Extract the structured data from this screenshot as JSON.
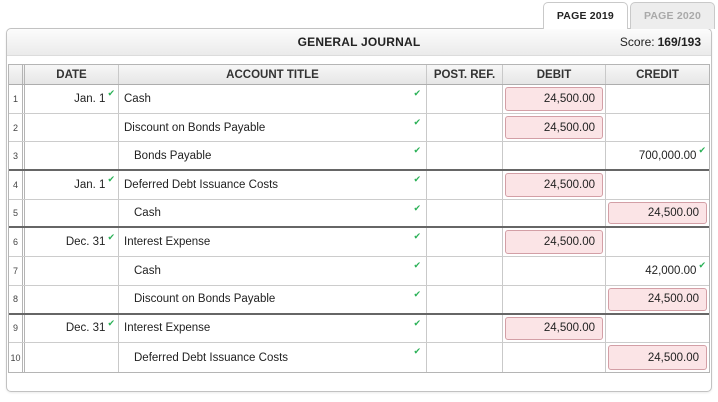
{
  "tabs": [
    {
      "label": "PAGE 2019",
      "active": true
    },
    {
      "label": "PAGE 2020",
      "active": false
    }
  ],
  "header": {
    "title": "GENERAL JOURNAL",
    "score_label": "Score:",
    "score_value": "169/193"
  },
  "table": {
    "columns": [
      "DATE",
      "ACCOUNT TITLE",
      "POST. REF.",
      "DEBIT",
      "CREDIT"
    ],
    "rows": [
      {
        "num": "1",
        "date": "Jan. 1",
        "date_check": true,
        "account": "Cash",
        "indent": false,
        "account_check": true,
        "post_ref": "",
        "debit": {
          "value": "24,500.00",
          "style": "flagged"
        },
        "credit": null,
        "entry_end": false
      },
      {
        "num": "2",
        "date": "",
        "date_check": false,
        "account": "Discount on Bonds Payable",
        "indent": false,
        "account_check": true,
        "post_ref": "",
        "debit": {
          "value": "24,500.00",
          "style": "flagged"
        },
        "credit": null,
        "entry_end": false
      },
      {
        "num": "3",
        "date": "",
        "date_check": false,
        "account": "Bonds Payable",
        "indent": true,
        "account_check": true,
        "post_ref": "",
        "debit": null,
        "credit": {
          "value": "700,000.00",
          "style": "correct"
        },
        "entry_end": true
      },
      {
        "num": "4",
        "date": "Jan. 1",
        "date_check": true,
        "account": "Deferred Debt Issuance Costs",
        "indent": false,
        "account_check": true,
        "post_ref": "",
        "debit": {
          "value": "24,500.00",
          "style": "flagged"
        },
        "credit": null,
        "entry_end": false
      },
      {
        "num": "5",
        "date": "",
        "date_check": false,
        "account": "Cash",
        "indent": true,
        "account_check": true,
        "post_ref": "",
        "debit": null,
        "credit": {
          "value": "24,500.00",
          "style": "flagged"
        },
        "entry_end": true
      },
      {
        "num": "6",
        "date": "Dec. 31",
        "date_check": true,
        "account": "Interest Expense",
        "indent": false,
        "account_check": true,
        "post_ref": "",
        "debit": {
          "value": "24,500.00",
          "style": "flagged"
        },
        "credit": null,
        "entry_end": false
      },
      {
        "num": "7",
        "date": "",
        "date_check": false,
        "account": "Cash",
        "indent": true,
        "account_check": true,
        "post_ref": "",
        "debit": null,
        "credit": {
          "value": "42,000.00",
          "style": "correct"
        },
        "entry_end": false
      },
      {
        "num": "8",
        "date": "",
        "date_check": false,
        "account": "Discount on Bonds Payable",
        "indent": true,
        "account_check": true,
        "post_ref": "",
        "debit": null,
        "credit": {
          "value": "24,500.00",
          "style": "flagged"
        },
        "entry_end": true
      },
      {
        "num": "9",
        "date": "Dec. 31",
        "date_check": true,
        "account": "Interest Expense",
        "indent": false,
        "account_check": true,
        "post_ref": "",
        "debit": {
          "value": "24,500.00",
          "style": "flagged"
        },
        "credit": null,
        "entry_end": false
      },
      {
        "num": "10",
        "date": "",
        "date_check": false,
        "account": "Deferred Debt Issuance Costs",
        "indent": true,
        "account_check": true,
        "post_ref": "",
        "debit": null,
        "credit": {
          "value": "24,500.00",
          "style": "flagged"
        },
        "entry_end": false
      }
    ]
  },
  "icons": {
    "check": "✔"
  },
  "colors": {
    "flagged_bg": "#fbe4e6",
    "flagged_border": "#d39fa6",
    "check_green": "#2bb157",
    "panel_border": "#c2c2c2"
  }
}
